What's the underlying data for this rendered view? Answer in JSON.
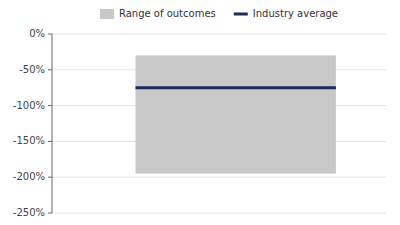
{
  "chart_data": {
    "type": "range_bar",
    "series": [
      {
        "name": "Range of outcomes",
        "type": "range",
        "color": "#c8c8c8",
        "low": [
          -1.95
        ],
        "high": [
          -0.3
        ]
      },
      {
        "name": "Industry average",
        "type": "line",
        "color": "#1a2d5a",
        "values": [
          -0.75
        ]
      }
    ],
    "ylim": [
      -2.5,
      0.0
    ],
    "yticks": [
      {
        "value": 0.0,
        "label": "0%"
      },
      {
        "value": -0.5,
        "label": "-50%"
      },
      {
        "value": -1.0,
        "label": "-100%"
      },
      {
        "value": -1.5,
        "label": "-150%"
      },
      {
        "value": -2.0,
        "label": "-200%"
      },
      {
        "value": -2.5,
        "label": "-250%"
      }
    ],
    "grid": true,
    "legend": "top"
  }
}
